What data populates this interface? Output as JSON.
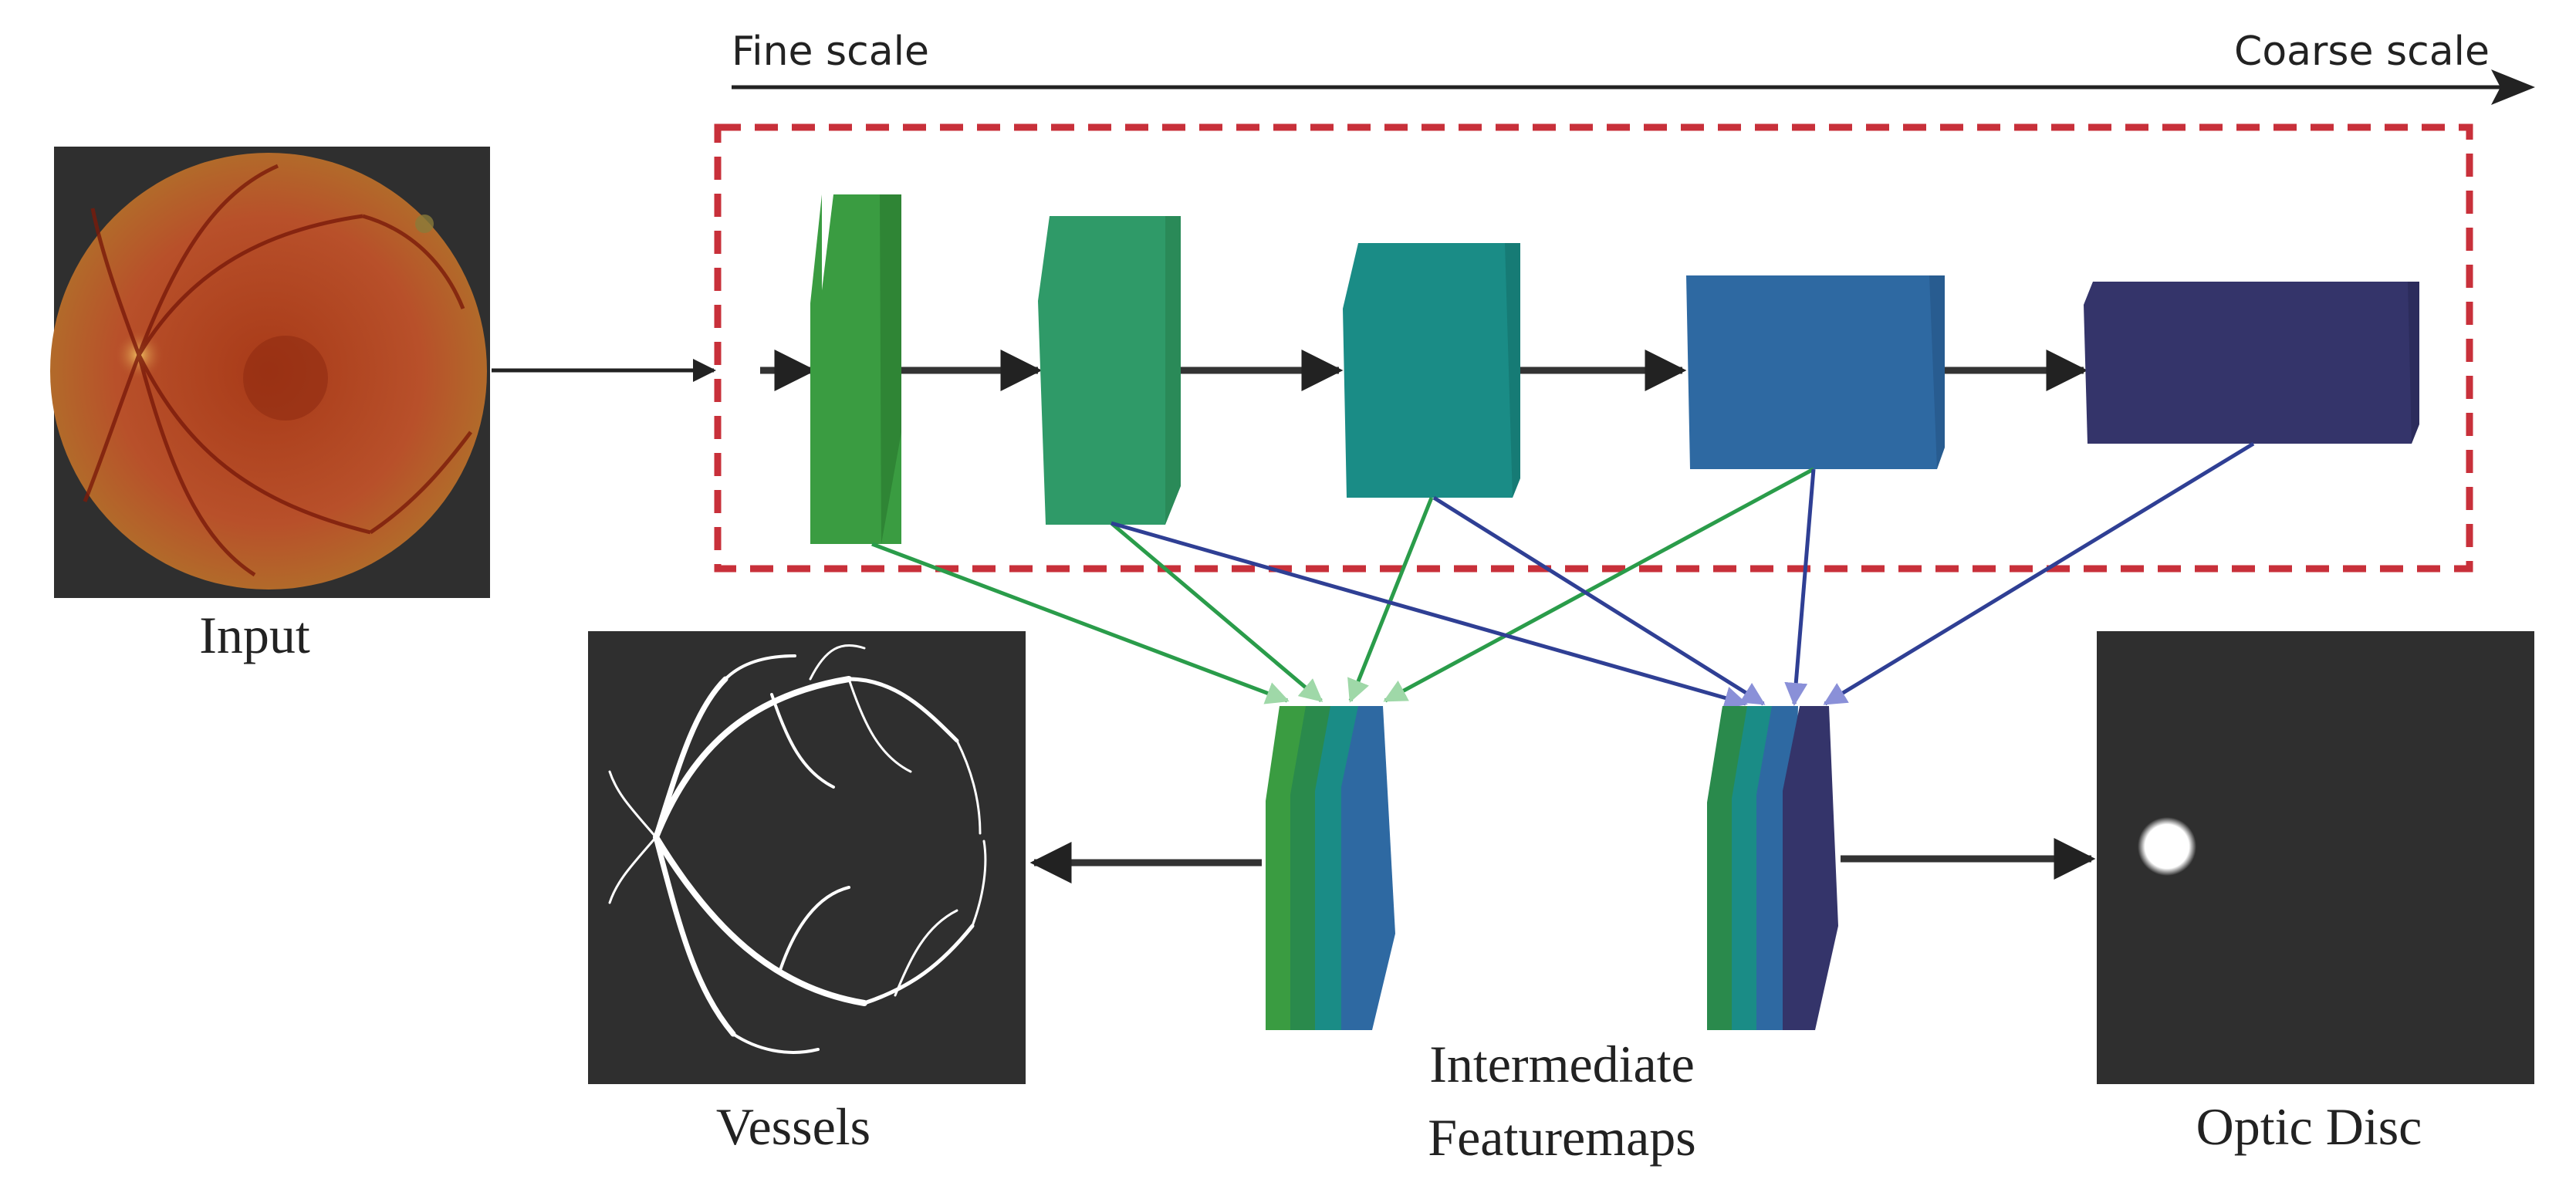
{
  "scale_axis": {
    "left_label": "Fine scale",
    "right_label": "Coarse scale"
  },
  "images": {
    "input": {
      "label": "Input",
      "background_color": "#2f2f2f",
      "fundus_color": "#b8502a"
    },
    "vessels": {
      "label": "Vessels",
      "background_color": "#2f2f2f",
      "vessel_color": "#ffffff"
    },
    "optic_disc": {
      "label": "Optic Disc",
      "background_color": "#2f2f2f",
      "disc_color": "#ffffff"
    }
  },
  "feature_maps_label_line1": "Intermediate",
  "feature_maps_label_line2": "Featuremaps",
  "backbone": {
    "frame_color": "#c8303a",
    "blocks": [
      {
        "id": "stage-1",
        "color": "#3a9c41"
      },
      {
        "id": "stage-2",
        "color": "#2f9a68"
      },
      {
        "id": "stage-3",
        "color": "#1a8c86"
      },
      {
        "id": "stage-4",
        "color": "#2e69a2"
      },
      {
        "id": "stage-5",
        "color": "#34346a"
      }
    ]
  },
  "feature_stacks": [
    {
      "id": "vessel-stack",
      "colors": [
        "#3a9c41",
        "#2a8a4c",
        "#1a8c86",
        "#2e69a2"
      ]
    },
    {
      "id": "disc-stack",
      "colors": [
        "#2a8a4c",
        "#1a8c86",
        "#2e69a2",
        "#34346a"
      ]
    }
  ],
  "connection_colors": {
    "vessel": "#2a9c4a",
    "disc": "#2f3f94"
  }
}
